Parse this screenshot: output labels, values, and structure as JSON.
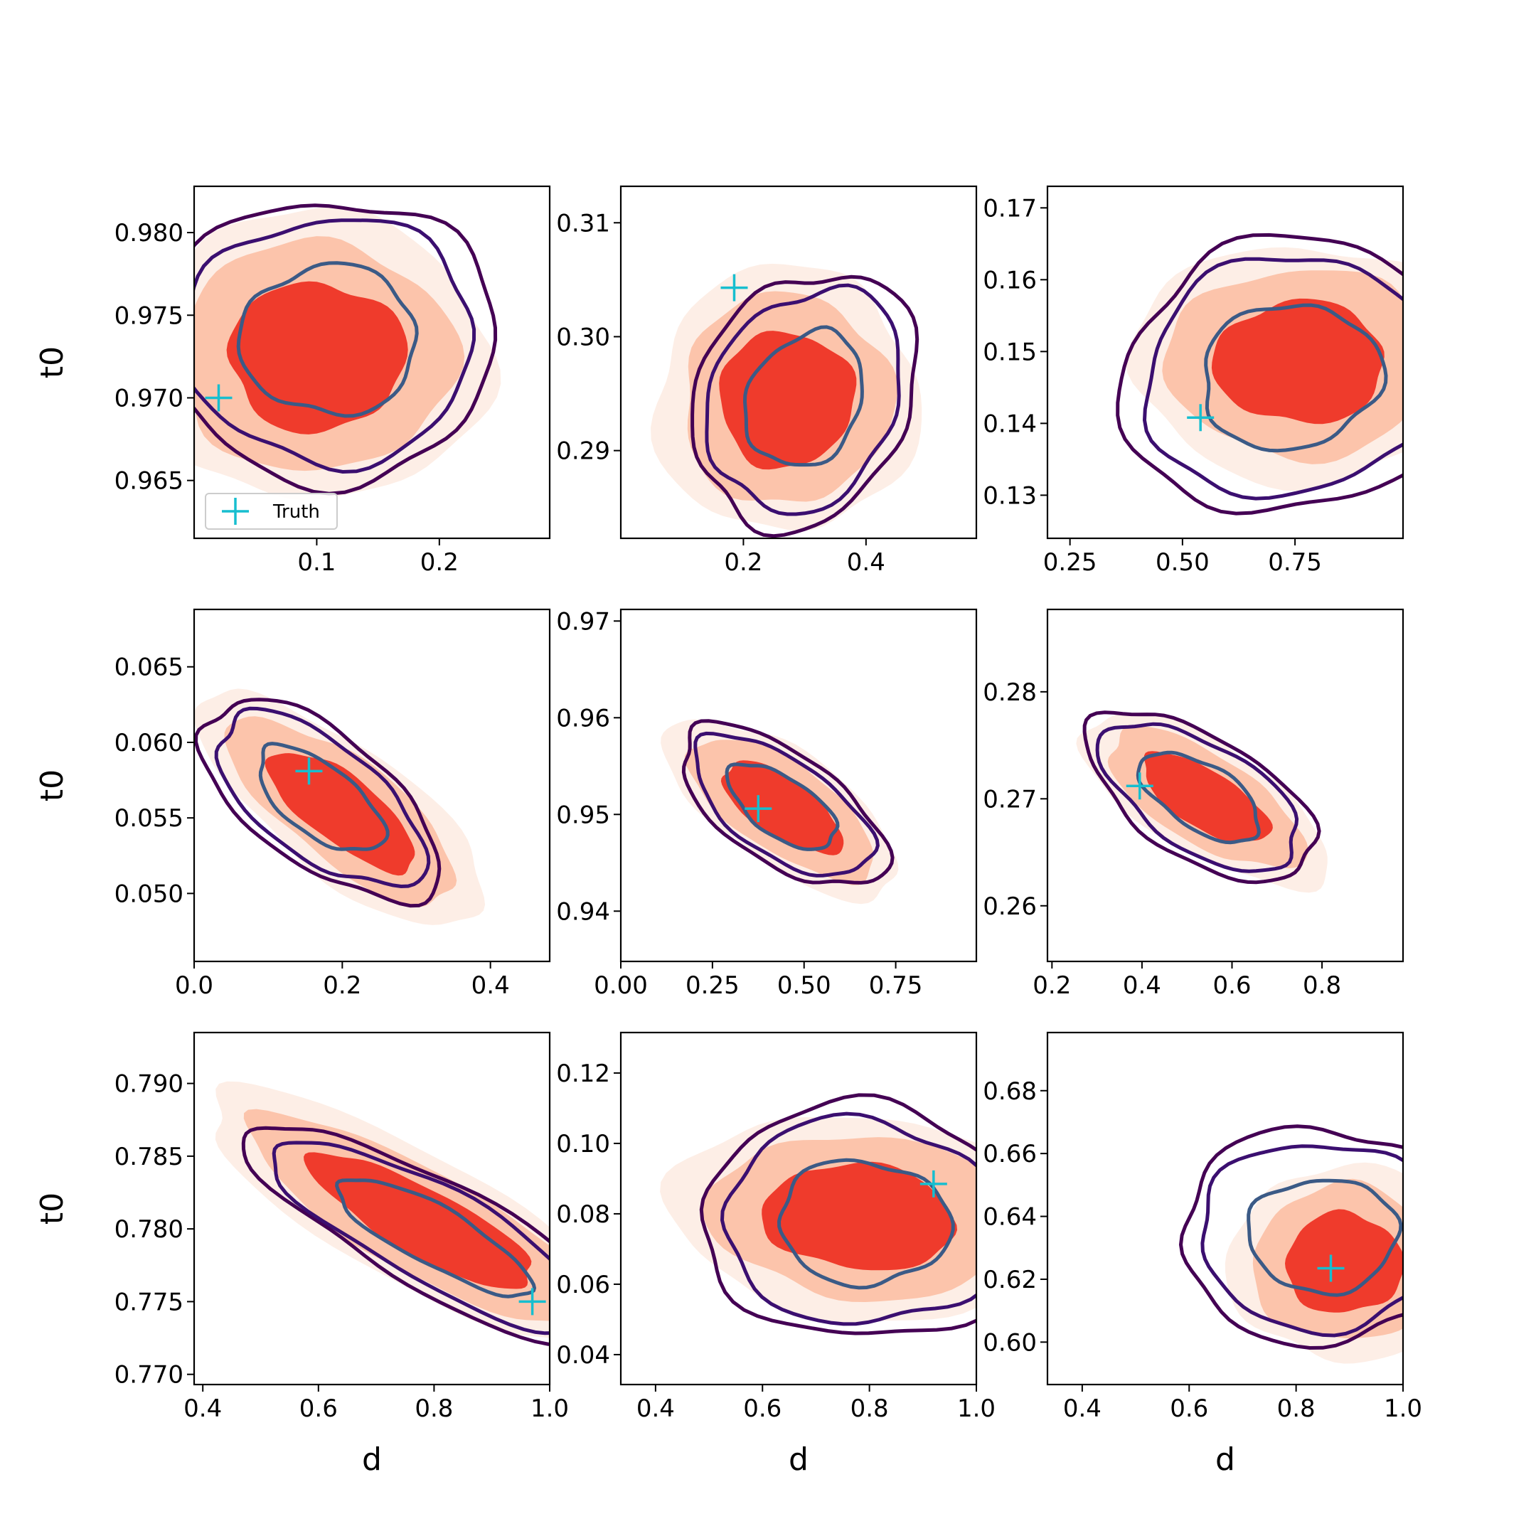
{
  "figure": {
    "shared_xlabel": "d",
    "shared_ylabel": "t0",
    "legend_label": "Truth",
    "legend_panel": 0,
    "truth_marker": "plus",
    "colors": {
      "fill_light": "#fdeee6",
      "fill_mid": "#fcc4ab",
      "fill_core": "#ef3b2c",
      "contour_outer": "#440154",
      "contour_middle": "#3b0f70",
      "contour_inner": "#3b5a86",
      "truth": "#17becf"
    }
  },
  "chart_data": [
    {
      "type": "scatter",
      "kind": "2d-kde-contour",
      "xlabel": "",
      "ylabel": "t0",
      "xlim": [
        0.0,
        0.29
      ],
      "ylim": [
        0.9615,
        0.9828
      ],
      "xticks": [
        0.1,
        0.2
      ],
      "xtick_labels": [
        "0.1",
        "0.2"
      ],
      "yticks": [
        0.965,
        0.97,
        0.975,
        0.98
      ],
      "ytick_labels": [
        "0.965",
        "0.970",
        "0.975",
        "0.980"
      ],
      "truth": {
        "x": 0.02,
        "y": 0.97
      },
      "blob": {
        "cx": 0.1,
        "cy": 0.9725,
        "rx": 0.072,
        "ry": 0.0045,
        "tilt": 0.0
      },
      "inner_contour": {
        "cx": 0.11,
        "cy": 0.9735,
        "rx": 0.072,
        "ry": 0.0045,
        "tilt": 0.0
      }
    },
    {
      "type": "scatter",
      "kind": "2d-kde-contour",
      "xlabel": "",
      "ylabel": "",
      "xlim": [
        0.0,
        0.58
      ],
      "ylim": [
        0.2823,
        0.3132
      ],
      "xticks": [
        0.2,
        0.4
      ],
      "xtick_labels": [
        "0.2",
        "0.4"
      ],
      "yticks": [
        0.29,
        0.3,
        0.31
      ],
      "ytick_labels": [
        "0.29",
        "0.30",
        "0.31"
      ],
      "truth": {
        "x": 0.185,
        "y": 0.3043
      },
      "blob": {
        "cx": 0.27,
        "cy": 0.2945,
        "rx": 0.11,
        "ry": 0.006,
        "tilt": -0.5
      },
      "inner_contour": {
        "cx": 0.3,
        "cy": 0.2945,
        "rx": 0.09,
        "ry": 0.0062,
        "tilt": -0.5
      }
    },
    {
      "type": "scatter",
      "kind": "2d-kde-contour",
      "xlabel": "",
      "ylabel": "",
      "xlim": [
        0.2,
        0.99
      ],
      "ylim": [
        0.124,
        0.173
      ],
      "xticks": [
        0.25,
        0.5,
        0.75
      ],
      "xtick_labels": [
        "0.25",
        "0.50",
        "0.75"
      ],
      "yticks": [
        0.13,
        0.14,
        0.15,
        0.16,
        0.17
      ],
      "ytick_labels": [
        "0.13",
        "0.14",
        "0.15",
        "0.16",
        "0.17"
      ],
      "truth": {
        "x": 0.54,
        "y": 0.1408
      },
      "blob": {
        "cx": 0.76,
        "cy": 0.1485,
        "rx": 0.19,
        "ry": 0.0085,
        "tilt": 0.0
      },
      "inner_contour": {
        "cx": 0.74,
        "cy": 0.1465,
        "rx": 0.2,
        "ry": 0.01,
        "tilt": 0.15
      }
    },
    {
      "type": "scatter",
      "kind": "2d-kde-contour",
      "xlabel": "",
      "ylabel": "t0",
      "xlim": [
        0.0,
        0.48
      ],
      "ylim": [
        0.0455,
        0.0688
      ],
      "xticks": [
        0.0,
        0.2,
        0.4
      ],
      "xtick_labels": [
        "0.0",
        "0.2",
        "0.4"
      ],
      "yticks": [
        0.05,
        0.055,
        0.06,
        0.065
      ],
      "ytick_labels": [
        "0.050",
        "0.055",
        "0.060",
        "0.065"
      ],
      "truth": {
        "x": 0.155,
        "y": 0.0581
      },
      "blob": {
        "cx": 0.2,
        "cy": 0.0555,
        "rx": 0.12,
        "ry": 0.0022,
        "tilt": -0.65
      },
      "inner_contour": {
        "cx": 0.17,
        "cy": 0.0562,
        "rx": 0.1,
        "ry": 0.0023,
        "tilt": -0.65
      }
    },
    {
      "type": "scatter",
      "kind": "2d-kde-contour",
      "xlabel": "",
      "ylabel": "",
      "xlim": [
        0.0,
        0.97
      ],
      "ylim": [
        0.9348,
        0.9712
      ],
      "xticks": [
        0.0,
        0.25,
        0.5,
        0.75
      ],
      "xtick_labels": [
        "0.00",
        "0.25",
        "0.50",
        "0.75"
      ],
      "yticks": [
        0.94,
        0.95,
        0.96,
        0.97
      ],
      "ytick_labels": [
        "0.94",
        "0.95",
        "0.96",
        "0.97"
      ],
      "truth": {
        "x": 0.375,
        "y": 0.9506
      },
      "blob": {
        "cx": 0.44,
        "cy": 0.9507,
        "rx": 0.19,
        "ry": 0.003,
        "tilt": -0.6
      },
      "inner_contour": {
        "cx": 0.44,
        "cy": 0.9508,
        "rx": 0.17,
        "ry": 0.003,
        "tilt": -0.6
      }
    },
    {
      "type": "scatter",
      "kind": "2d-kde-contour",
      "xlabel": "",
      "ylabel": "",
      "xlim": [
        0.19,
        0.98
      ],
      "ylim": [
        0.2548,
        0.2877
      ],
      "xticks": [
        0.2,
        0.4,
        0.6,
        0.8
      ],
      "xtick_labels": [
        "0.2",
        "0.4",
        "0.6",
        "0.8"
      ],
      "yticks": [
        0.26,
        0.27,
        0.28
      ],
      "ytick_labels": [
        "0.26",
        "0.27",
        "0.28"
      ],
      "truth": {
        "x": 0.395,
        "y": 0.2712
      },
      "blob": {
        "cx": 0.54,
        "cy": 0.27,
        "rx": 0.16,
        "ry": 0.0027,
        "tilt": -0.55
      },
      "inner_contour": {
        "cx": 0.53,
        "cy": 0.2702,
        "rx": 0.15,
        "ry": 0.003,
        "tilt": -0.55
      }
    },
    {
      "type": "scatter",
      "kind": "2d-kde-contour",
      "xlabel": "d",
      "ylabel": "t0",
      "xlim": [
        0.385,
        1.0
      ],
      "ylim": [
        0.7693,
        0.7935
      ],
      "xticks": [
        0.4,
        0.6,
        0.8,
        1.0
      ],
      "xtick_labels": [
        "0.4",
        "0.6",
        "0.8",
        "1.0"
      ],
      "yticks": [
        0.77,
        0.775,
        0.78,
        0.785,
        0.79
      ],
      "ytick_labels": [
        "0.770",
        "0.775",
        "0.780",
        "0.785",
        "0.790"
      ],
      "truth": {
        "x": 0.97,
        "y": 0.775
      },
      "blob": {
        "cx": 0.78,
        "cy": 0.7805,
        "rx": 0.22,
        "ry": 0.0023,
        "tilt": -0.5
      },
      "inner_contour": {
        "cx": 0.8,
        "cy": 0.7795,
        "rx": 0.19,
        "ry": 0.002,
        "tilt": -0.5
      }
    },
    {
      "type": "scatter",
      "kind": "2d-kde-contour",
      "xlabel": "d",
      "ylabel": "",
      "xlim": [
        0.335,
        1.0
      ],
      "ylim": [
        0.0315,
        0.1315
      ],
      "xticks": [
        0.4,
        0.6,
        0.8,
        1.0
      ],
      "xtick_labels": [
        "0.4",
        "0.6",
        "0.8",
        "1.0"
      ],
      "yticks": [
        0.04,
        0.06,
        0.08,
        0.1,
        0.12
      ],
      "ytick_labels": [
        "0.04",
        "0.06",
        "0.08",
        "0.10",
        "0.12"
      ],
      "truth": {
        "x": 0.92,
        "y": 0.0885
      },
      "blob": {
        "cx": 0.78,
        "cy": 0.079,
        "rx": 0.18,
        "ry": 0.015,
        "tilt": -0.08
      },
      "inner_contour": {
        "cx": 0.79,
        "cy": 0.0775,
        "rx": 0.16,
        "ry": 0.0175,
        "tilt": -0.08
      }
    },
    {
      "type": "scatter",
      "kind": "2d-kde-contour",
      "xlabel": "d",
      "ylabel": "",
      "xlim": [
        0.335,
        1.0
      ],
      "ylim": [
        0.5865,
        0.6985
      ],
      "xticks": [
        0.4,
        0.6,
        0.8,
        1.0
      ],
      "xtick_labels": [
        "0.4",
        "0.6",
        "0.8",
        "1.0"
      ],
      "yticks": [
        0.6,
        0.62,
        0.64,
        0.66,
        0.68
      ],
      "ytick_labels": [
        "0.60",
        "0.62",
        "0.64",
        "0.66",
        "0.68"
      ],
      "truth": {
        "x": 0.865,
        "y": 0.6235
      },
      "blob": {
        "cx": 0.89,
        "cy": 0.625,
        "rx": 0.11,
        "ry": 0.016,
        "tilt": 0.0
      },
      "inner_contour": {
        "cx": 0.85,
        "cy": 0.634,
        "rx": 0.14,
        "ry": 0.018,
        "tilt": 0.0
      }
    }
  ]
}
